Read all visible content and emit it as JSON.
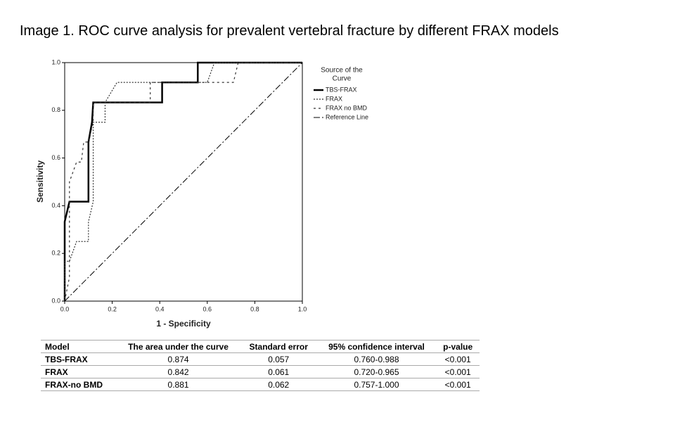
{
  "title": "Image 1. ROC curve analysis for prevalent vertebral fracture by different FRAX models",
  "chart_data": {
    "type": "line",
    "x_label": "1 - Specificity",
    "y_label": "Sensitivity",
    "legend_title": [
      "Source of the",
      "Curve"
    ],
    "xlim": [
      0,
      1
    ],
    "ylim": [
      0,
      1
    ],
    "xticks": [
      {
        "value": 0,
        "label": "0.0"
      },
      0.2,
      0.4,
      0.6,
      0.8,
      {
        "value": 1,
        "label": "1.0"
      }
    ],
    "yticks": [
      {
        "value": 0,
        "label": "0.0"
      },
      0.2,
      0.4,
      0.6,
      0.8,
      {
        "value": 1,
        "label": "1.0"
      }
    ],
    "legend": "right",
    "series": [
      {
        "name": "TBS-FRAX",
        "color": "#000000",
        "dash": "solid",
        "x": [
          0,
          0,
          0.02,
          0.1,
          0.1,
          0.115,
          0.12,
          0.41,
          0.41,
          0.56,
          0.56,
          1
        ],
        "values": [
          0,
          0.333,
          0.417,
          0.417,
          0.667,
          0.75,
          0.833,
          0.833,
          0.917,
          0.917,
          1,
          1
        ]
      },
      {
        "name": "FRAX",
        "color": "#333333",
        "dash": "dotted",
        "x": [
          0,
          0,
          0.02,
          0.05,
          0.1,
          0.1,
          0.12,
          0.12,
          0.17,
          0.17,
          0.22,
          0.6,
          0.63,
          1
        ],
        "values": [
          0,
          0.167,
          0.167,
          0.25,
          0.25,
          0.333,
          0.417,
          0.75,
          0.75,
          0.833,
          0.917,
          0.917,
          1,
          1
        ]
      },
      {
        "name": "FRAX no BMD",
        "color": "#333333",
        "dash": "dashed",
        "x": [
          0,
          0.02,
          0.02,
          0.05,
          0.07,
          0.08,
          0.1,
          0.12,
          0.12,
          0.36,
          0.36,
          0.71,
          0.73,
          1
        ],
        "values": [
          0,
          0.1,
          0.5,
          0.583,
          0.583,
          0.667,
          0.667,
          0.75,
          0.833,
          0.833,
          0.917,
          0.917,
          1,
          1
        ]
      },
      {
        "name": "Reference Line",
        "color": "#000000",
        "dash": "dash-dot",
        "x": [
          0,
          1
        ],
        "values": [
          0,
          1
        ]
      }
    ]
  },
  "table": {
    "header": [
      "Model",
      "The area under the curve",
      "Standard error",
      "95% confidence interval",
      "p-value"
    ],
    "rows": [
      [
        "TBS-FRAX",
        "0.874",
        "0.057",
        "0.760-0.988",
        "<0.001"
      ],
      [
        "FRAX",
        "0.842",
        "0.061",
        "0.720-0.965",
        "<0.001"
      ],
      [
        "FRAX-no BMD",
        "0.881",
        "0.062",
        "0.757-1.000",
        "<0.001"
      ]
    ]
  }
}
